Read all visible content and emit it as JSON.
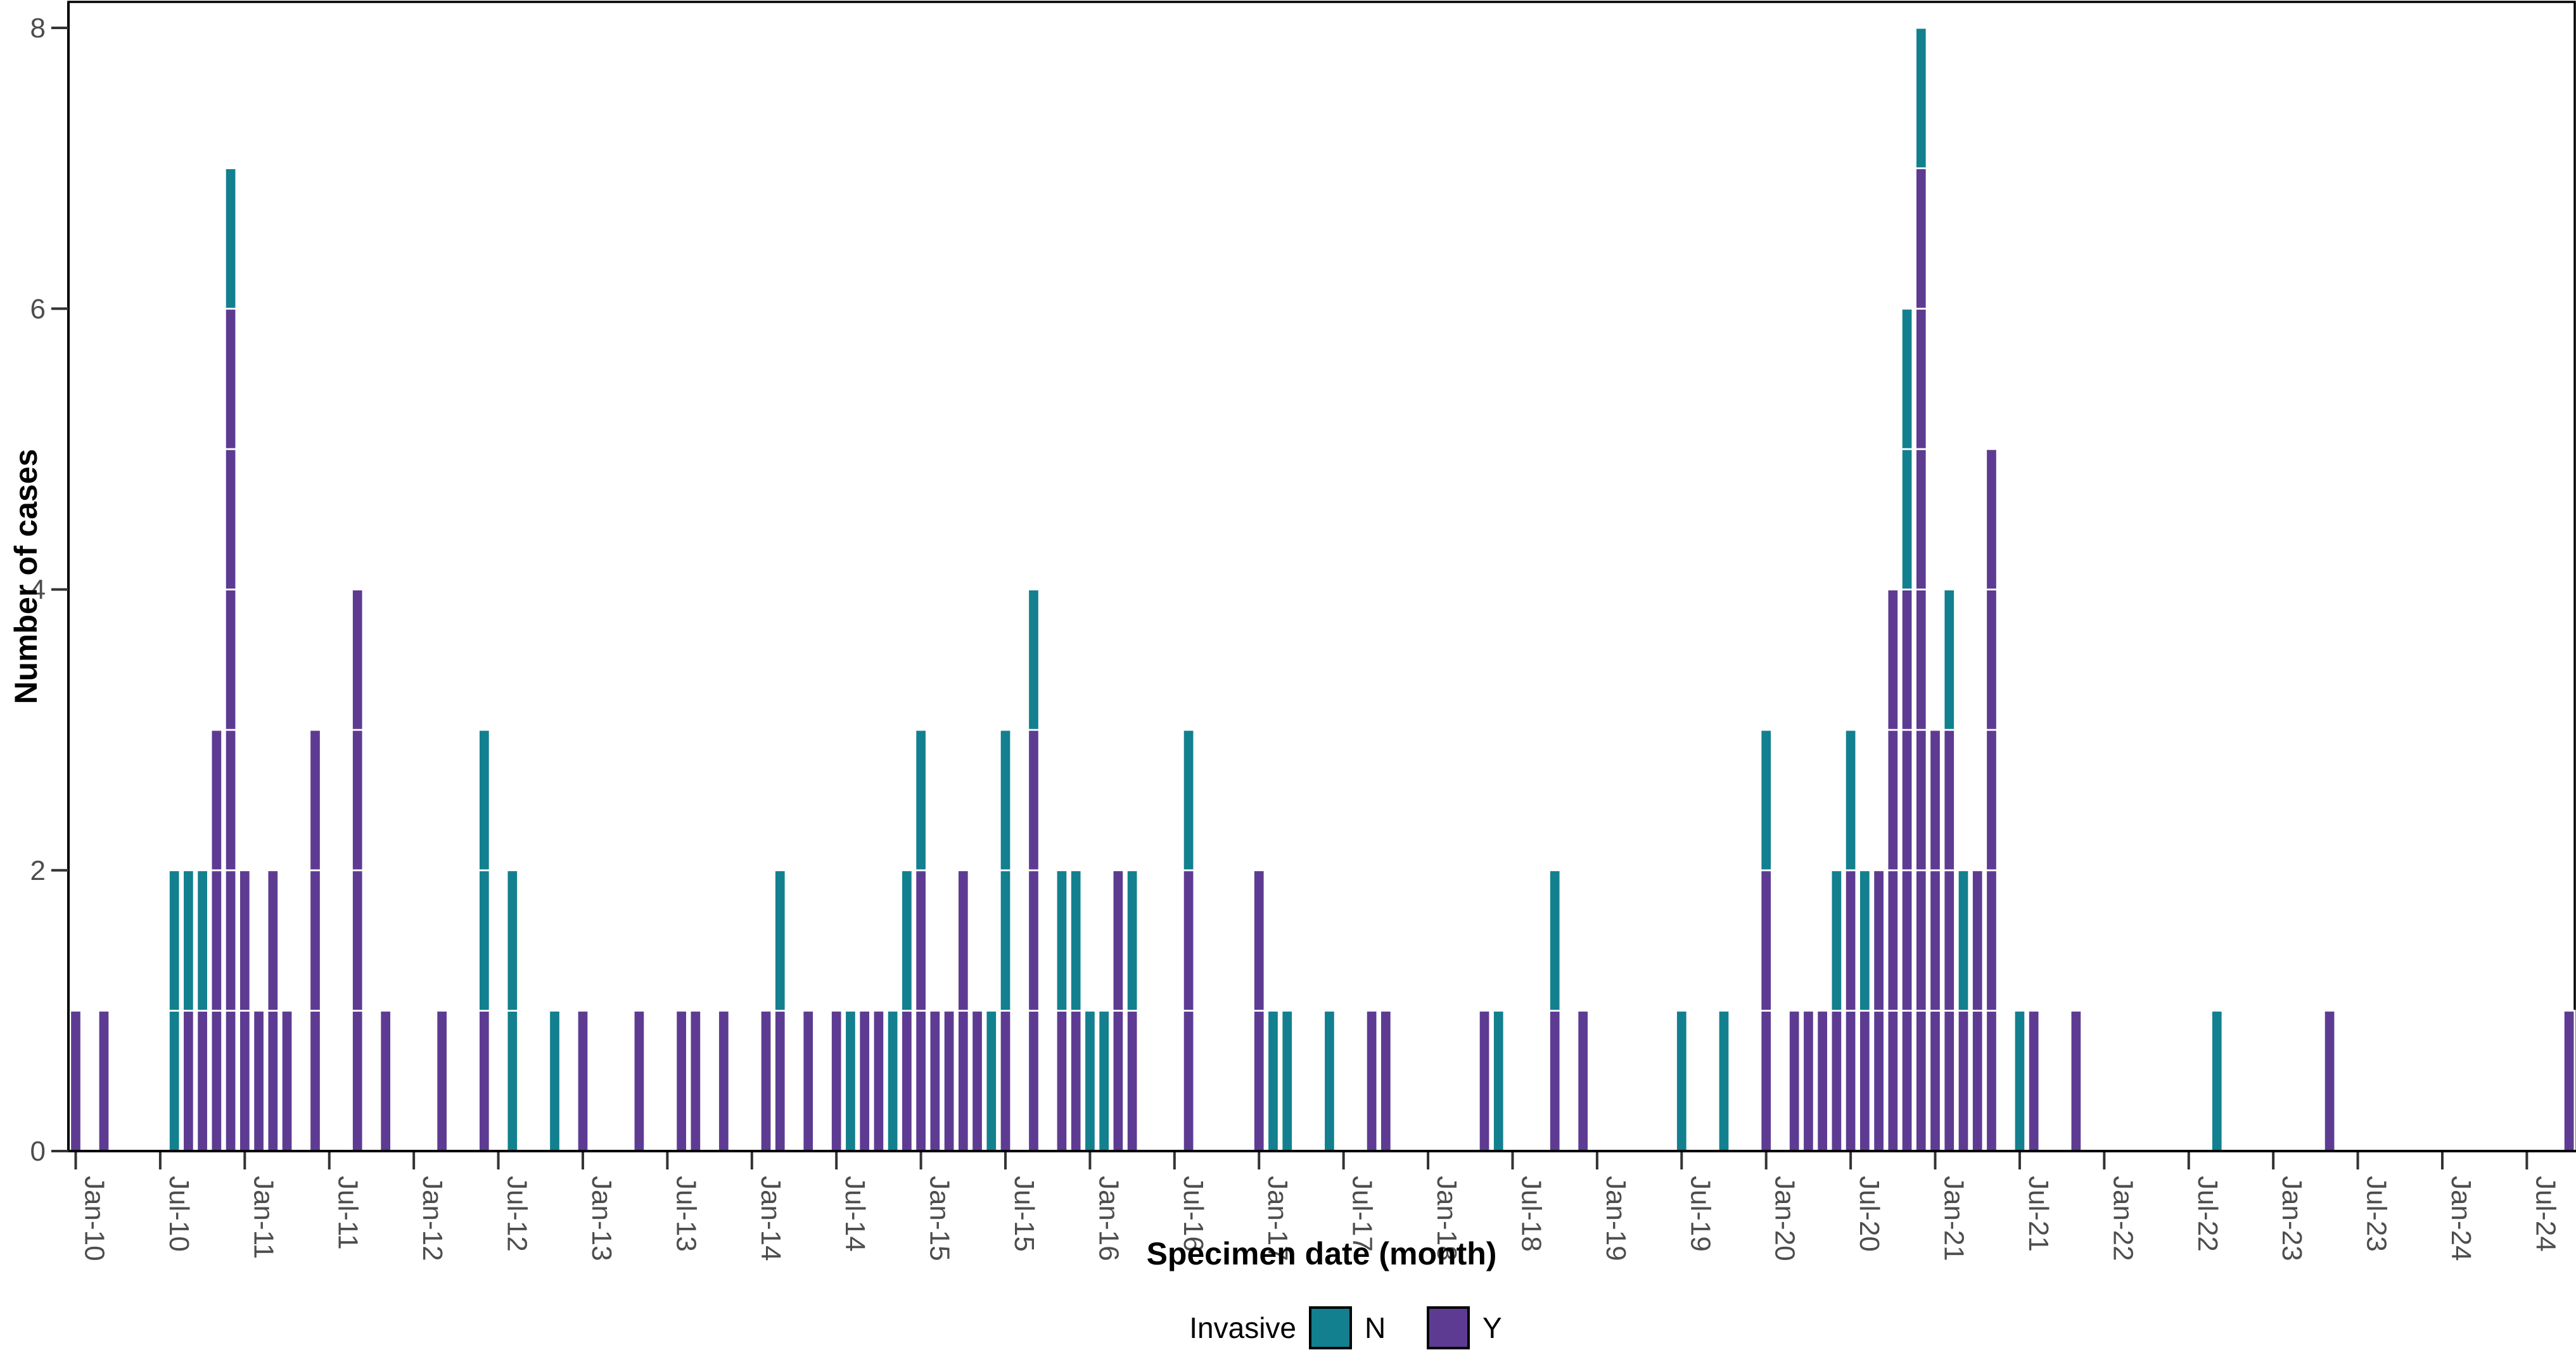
{
  "chart_data": {
    "type": "bar",
    "stacked": true,
    "title": "",
    "xlabel": "Specimen date (month)",
    "ylabel": "Number of cases",
    "ylim": [
      0,
      8
    ],
    "yticks": [
      0,
      2,
      4,
      6,
      8
    ],
    "grid": false,
    "x_tick_labels": [
      "Jan-10",
      "Jul-10",
      "Jan-11",
      "Jul-11",
      "Jan-12",
      "Jul-12",
      "Jan-13",
      "Jul-13",
      "Jan-14",
      "Jul-14",
      "Jan-15",
      "Jul-15",
      "Jan-16",
      "Jul-16",
      "Jan-17",
      "Jul-17",
      "Jan-18",
      "Jul-18",
      "Jan-19",
      "Jul-19",
      "Jan-20",
      "Jul-20",
      "Jan-21",
      "Jul-21",
      "Jan-22",
      "Jul-22",
      "Jan-23",
      "Jul-23",
      "Jan-24",
      "Jul-24"
    ],
    "legend": {
      "title": "Invasive",
      "position": "bottom",
      "entries": [
        {
          "label": "N",
          "color": "#12808E"
        },
        {
          "label": "Y",
          "color": "#5E3B92"
        }
      ]
    },
    "colors": {
      "N": "#12808E",
      "Y": "#5E3B92",
      "axis": "#000000",
      "tick_text": "#4D4D4D",
      "bar_outline": "#FFFFFF"
    },
    "series": [
      {
        "month": "2010-01",
        "N": 0,
        "Y": 1
      },
      {
        "month": "2010-03",
        "N": 0,
        "Y": 1
      },
      {
        "month": "2010-08",
        "N": 2,
        "Y": 0
      },
      {
        "month": "2010-09",
        "N": 1,
        "Y": 1
      },
      {
        "month": "2010-10",
        "N": 1,
        "Y": 1
      },
      {
        "month": "2010-11",
        "N": 0,
        "Y": 3
      },
      {
        "month": "2010-12",
        "N": 1,
        "Y": 6
      },
      {
        "month": "2011-01",
        "N": 0,
        "Y": 2
      },
      {
        "month": "2011-02",
        "N": 0,
        "Y": 1
      },
      {
        "month": "2011-03",
        "N": 0,
        "Y": 2
      },
      {
        "month": "2011-04",
        "N": 0,
        "Y": 1
      },
      {
        "month": "2011-06",
        "N": 0,
        "Y": 3
      },
      {
        "month": "2011-09",
        "N": 0,
        "Y": 4
      },
      {
        "month": "2011-11",
        "N": 0,
        "Y": 1
      },
      {
        "month": "2012-03",
        "N": 0,
        "Y": 1
      },
      {
        "month": "2012-06",
        "N": 2,
        "Y": 1
      },
      {
        "month": "2012-08",
        "N": 2,
        "Y": 0
      },
      {
        "month": "2012-11",
        "N": 1,
        "Y": 0
      },
      {
        "month": "2013-01",
        "N": 0,
        "Y": 1
      },
      {
        "month": "2013-05",
        "N": 0,
        "Y": 1
      },
      {
        "month": "2013-08",
        "N": 0,
        "Y": 1
      },
      {
        "month": "2013-09",
        "N": 0,
        "Y": 1
      },
      {
        "month": "2013-11",
        "N": 0,
        "Y": 1
      },
      {
        "month": "2014-02",
        "N": 0,
        "Y": 1
      },
      {
        "month": "2014-03",
        "N": 1,
        "Y": 1
      },
      {
        "month": "2014-05",
        "N": 0,
        "Y": 1
      },
      {
        "month": "2014-07",
        "N": 0,
        "Y": 1
      },
      {
        "month": "2014-08",
        "N": 1,
        "Y": 0
      },
      {
        "month": "2014-09",
        "N": 0,
        "Y": 1
      },
      {
        "month": "2014-10",
        "N": 0,
        "Y": 1
      },
      {
        "month": "2014-11",
        "N": 1,
        "Y": 0
      },
      {
        "month": "2014-12",
        "N": 1,
        "Y": 1
      },
      {
        "month": "2015-01",
        "N": 1,
        "Y": 2
      },
      {
        "month": "2015-02",
        "N": 0,
        "Y": 1
      },
      {
        "month": "2015-03",
        "N": 0,
        "Y": 1
      },
      {
        "month": "2015-04",
        "N": 0,
        "Y": 2
      },
      {
        "month": "2015-05",
        "N": 0,
        "Y": 1
      },
      {
        "month": "2015-06",
        "N": 1,
        "Y": 0
      },
      {
        "month": "2015-07",
        "N": 2,
        "Y": 1
      },
      {
        "month": "2015-09",
        "N": 1,
        "Y": 3
      },
      {
        "month": "2015-11",
        "N": 1,
        "Y": 1
      },
      {
        "month": "2015-12",
        "N": 1,
        "Y": 1
      },
      {
        "month": "2016-01",
        "N": 1,
        "Y": 0
      },
      {
        "month": "2016-02",
        "N": 1,
        "Y": 0
      },
      {
        "month": "2016-03",
        "N": 0,
        "Y": 2
      },
      {
        "month": "2016-04",
        "N": 1,
        "Y": 1
      },
      {
        "month": "2016-08",
        "N": 1,
        "Y": 2
      },
      {
        "month": "2017-01",
        "N": 0,
        "Y": 2
      },
      {
        "month": "2017-02",
        "N": 1,
        "Y": 0
      },
      {
        "month": "2017-03",
        "N": 1,
        "Y": 0
      },
      {
        "month": "2017-06",
        "N": 1,
        "Y": 0
      },
      {
        "month": "2017-09",
        "N": 0,
        "Y": 1
      },
      {
        "month": "2017-10",
        "N": 0,
        "Y": 1
      },
      {
        "month": "2018-05",
        "N": 0,
        "Y": 1
      },
      {
        "month": "2018-06",
        "N": 1,
        "Y": 0
      },
      {
        "month": "2018-10",
        "N": 1,
        "Y": 1
      },
      {
        "month": "2018-12",
        "N": 0,
        "Y": 1
      },
      {
        "month": "2019-07",
        "N": 1,
        "Y": 0
      },
      {
        "month": "2019-10",
        "N": 1,
        "Y": 0
      },
      {
        "month": "2020-01",
        "N": 1,
        "Y": 2
      },
      {
        "month": "2020-03",
        "N": 0,
        "Y": 1
      },
      {
        "month": "2020-04",
        "N": 0,
        "Y": 1
      },
      {
        "month": "2020-05",
        "N": 0,
        "Y": 1
      },
      {
        "month": "2020-06",
        "N": 1,
        "Y": 1
      },
      {
        "month": "2020-07",
        "N": 1,
        "Y": 2
      },
      {
        "month": "2020-08",
        "N": 1,
        "Y": 1
      },
      {
        "month": "2020-09",
        "N": 0,
        "Y": 2
      },
      {
        "month": "2020-10",
        "N": 0,
        "Y": 4
      },
      {
        "month": "2020-11",
        "N": 2,
        "Y": 4
      },
      {
        "month": "2020-12",
        "N": 1,
        "Y": 7
      },
      {
        "month": "2021-01",
        "N": 0,
        "Y": 3
      },
      {
        "month": "2021-02",
        "N": 1,
        "Y": 3
      },
      {
        "month": "2021-03",
        "N": 1,
        "Y": 1
      },
      {
        "month": "2021-04",
        "N": 0,
        "Y": 2
      },
      {
        "month": "2021-05",
        "N": 0,
        "Y": 5
      },
      {
        "month": "2021-07",
        "N": 1,
        "Y": 0
      },
      {
        "month": "2021-08",
        "N": 0,
        "Y": 1
      },
      {
        "month": "2021-11",
        "N": 0,
        "Y": 1
      },
      {
        "month": "2022-09",
        "N": 1,
        "Y": 0
      },
      {
        "month": "2023-05",
        "N": 0,
        "Y": 1
      },
      {
        "month": "2024-10",
        "N": 0,
        "Y": 1
      }
    ]
  }
}
